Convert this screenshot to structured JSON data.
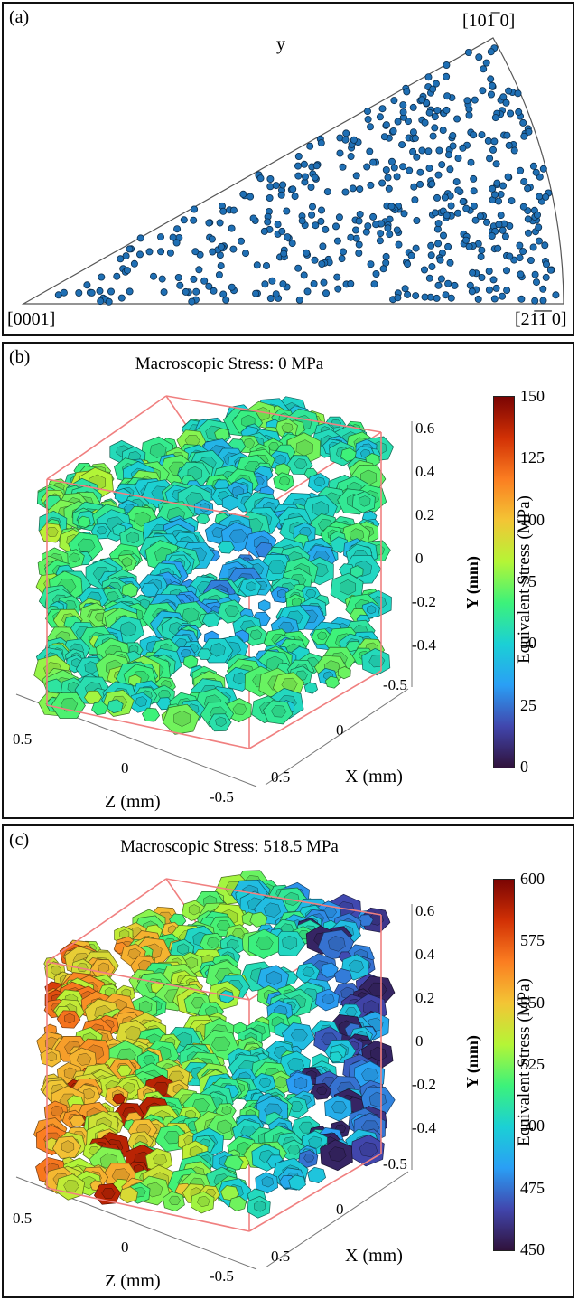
{
  "panel_a": {
    "letter": "(a)",
    "label_y": "y",
    "corner_left": "[0001]",
    "corner_top": "[101̅ 0]",
    "corner_right": "[21̅1̅ 0]",
    "point_color": "#1f6fb4",
    "point_count": 520
  },
  "panel_b": {
    "letter": "(b)",
    "title": "Macroscopic Stress: 0 MPa",
    "colorbar_label": "Equivalent Stress (MPa)",
    "colorbar_ticks": [
      "150",
      "125",
      "100",
      "75",
      "50",
      "25",
      "0"
    ],
    "y_axis_label": "Y (mm)",
    "y_ticks": [
      "0.6",
      "0.4",
      "0.2",
      "0",
      "-0.2",
      "-0.4"
    ],
    "x_axis_label": "X (mm)",
    "x_ticks": [
      "-0.5",
      "0",
      "0.5"
    ],
    "z_axis_label": "Z (mm)",
    "z_ticks": [
      "0.5",
      "0",
      "-0.5"
    ]
  },
  "panel_c": {
    "letter": "(c)",
    "title": "Macroscopic Stress: 518.5 MPa",
    "colorbar_label": "Equivalent Stress (MPa)",
    "colorbar_ticks": [
      "600",
      "575",
      "550",
      "525",
      "500",
      "475",
      "450"
    ],
    "y_axis_label": "Y (mm)",
    "y_ticks": [
      "0.6",
      "0.4",
      "0.2",
      "0",
      "-0.2",
      "-0.4"
    ],
    "x_axis_label": "X (mm)",
    "x_ticks": [
      "-0.5",
      "0",
      "0.5"
    ],
    "z_axis_label": "Z (mm)",
    "z_ticks": [
      "0.5",
      "0",
      "-0.5"
    ]
  },
  "colors": {
    "box_edge": "#f08080",
    "jet": [
      "#30123b",
      "#4146ad",
      "#2a9ff5",
      "#1bd0d5",
      "#3cf27a",
      "#b5f536",
      "#f3c535",
      "#fb7e21",
      "#d23105",
      "#7a0403"
    ]
  }
}
